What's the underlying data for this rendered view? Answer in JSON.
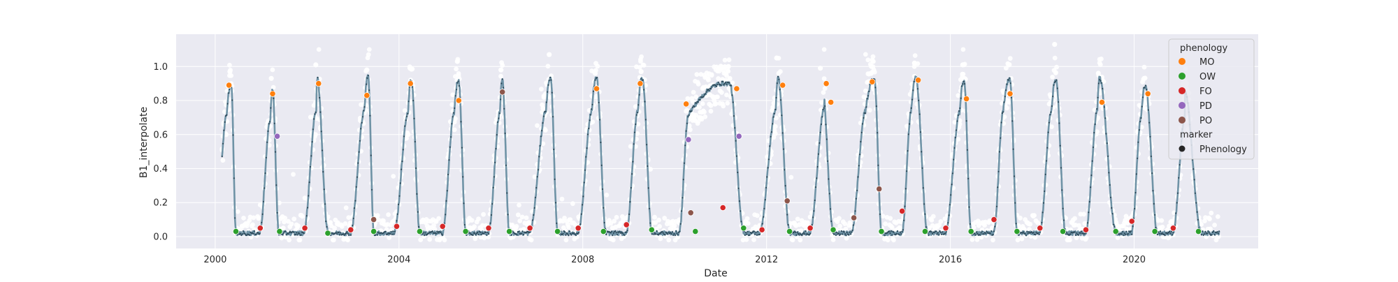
{
  "chart_data": {
    "type": "line",
    "title": "",
    "xlabel": "Date",
    "ylabel": "B1_interpolate",
    "xlim": [
      1999.15,
      2022.7
    ],
    "ylim": [
      -0.07,
      1.19
    ],
    "x_ticks": [
      {
        "value": 2000,
        "label": "2000"
      },
      {
        "value": 2004,
        "label": "2004"
      },
      {
        "value": 2008,
        "label": "2008"
      },
      {
        "value": 2012,
        "label": "2012"
      },
      {
        "value": 2016,
        "label": "2016"
      },
      {
        "value": 2020,
        "label": "2020"
      }
    ],
    "y_ticks": [
      {
        "value": 0.0,
        "label": "0.0"
      },
      {
        "value": 0.2,
        "label": "0.2"
      },
      {
        "value": 0.4,
        "label": "0.4"
      },
      {
        "value": 0.6,
        "label": "0.6"
      },
      {
        "value": 0.8,
        "label": "0.8"
      },
      {
        "value": 1.0,
        "label": "1.0"
      }
    ],
    "grid": true,
    "background": "#eaeaf2",
    "line_color": "#6f93a6",
    "raw_point_color": "#ffffff",
    "series_range": [
      2000.15,
      2021.85
    ],
    "seasons": [
      {
        "mo": 2000.35,
        "ow": 2000.45,
        "fo": 2000.97,
        "po": 2001.2,
        "peak": 0.89,
        "raw_peak": 0.97
      },
      {
        "mo": 2001.25,
        "ow": 2001.38,
        "fo": 2001.93,
        "po": 2002.2,
        "peak": 0.86,
        "raw_peak": 0.93
      },
      {
        "mo": 2002.22,
        "ow": 2002.45,
        "fo": 2002.95,
        "po": 2003.25,
        "peak": 0.93,
        "raw_peak": 1.01
      },
      {
        "mo": 2003.33,
        "ow": 2003.45,
        "fo": 2003.9,
        "po": 2004.2,
        "peak": 0.94,
        "raw_peak": 0.98
      },
      {
        "mo": 2004.27,
        "ow": 2004.45,
        "fo": 2004.95,
        "po": 2005.2,
        "peak": 0.92,
        "raw_peak": 0.99
      },
      {
        "mo": 2005.3,
        "ow": 2005.45,
        "fo": 2005.95,
        "po": 2006.2,
        "peak": 0.91,
        "raw_peak": 1.03
      },
      {
        "mo": 2006.25,
        "ow": 2006.4,
        "fo": 2006.85,
        "po": 2007.2,
        "peak": 0.92,
        "raw_peak": 0.98
      },
      {
        "mo": 2007.3,
        "ow": 2007.45,
        "fo": 2007.9,
        "po": 2008.2,
        "peak": 0.93,
        "raw_peak": 1.07
      },
      {
        "mo": 2008.3,
        "ow": 2008.5,
        "fo": 2008.95,
        "po": 2009.2,
        "peak": 0.93,
        "raw_peak": 0.96
      },
      {
        "mo": 2009.3,
        "ow": 2009.5,
        "fo": 2010.1,
        "po": 2010.3,
        "peak": 0.93,
        "raw_peak": 0.97
      },
      {
        "mo": 2011.2,
        "ow": 2011.5,
        "fo": 2011.85,
        "po": 2012.2,
        "peak": 0.9,
        "raw_peak": 1.0
      },
      {
        "mo": 2012.25,
        "ow": 2012.5,
        "fo": 2012.95,
        "po": 2013.25,
        "peak": 0.93,
        "raw_peak": 1.05
      },
      {
        "mo": 2013.2,
        "ow": 2013.45,
        "fo": 2013.85,
        "po": 2014.15,
        "peak": 0.93,
        "raw_peak": 0.99
      },
      {
        "mo": 2014.35,
        "ow": 2014.5,
        "fo": 2014.95,
        "po": 2015.15,
        "peak": 0.92,
        "raw_peak": 1.03
      },
      {
        "mo": 2015.25,
        "ow": 2015.5,
        "fo": 2015.9,
        "po": 2016.2,
        "peak": 0.93,
        "raw_peak": 1.02
      },
      {
        "mo": 2016.3,
        "ow": 2016.45,
        "fo": 2016.95,
        "po": 2017.15,
        "peak": 0.91,
        "raw_peak": 1.01
      },
      {
        "mo": 2017.3,
        "ow": 2017.45,
        "fo": 2017.95,
        "po": 2018.2,
        "peak": 0.92,
        "raw_peak": 1.01
      },
      {
        "mo": 2018.3,
        "ow": 2018.5,
        "fo": 2018.95,
        "po": 2019.2,
        "peak": 0.92,
        "raw_peak": 1.13
      },
      {
        "mo": 2019.25,
        "ow": 2019.6,
        "fo": 2019.95,
        "po": 2020.15,
        "peak": 0.93,
        "raw_peak": 0.96
      },
      {
        "mo": 2020.25,
        "ow": 2020.5,
        "fo": 2020.85,
        "po": 2021.1,
        "peak": 0.88,
        "raw_peak": 0.93
      },
      {
        "mo": 2021.1,
        "ow": 2021.45,
        "fo": 2021.85,
        "po": 2021.85,
        "peak": 0.86,
        "raw_peak": 0.9
      }
    ],
    "phenology_points": [
      {
        "x": 2000.3,
        "y": 0.89,
        "type": "MO"
      },
      {
        "x": 2000.45,
        "y": 0.03,
        "type": "OW"
      },
      {
        "x": 2000.98,
        "y": 0.05,
        "type": "FO"
      },
      {
        "x": 2001.25,
        "y": 0.84,
        "type": "MO"
      },
      {
        "x": 2001.35,
        "y": 0.59,
        "type": "PD"
      },
      {
        "x": 2001.4,
        "y": 0.03,
        "type": "OW"
      },
      {
        "x": 2001.95,
        "y": 0.05,
        "type": "FO"
      },
      {
        "x": 2002.25,
        "y": 0.9,
        "type": "MO"
      },
      {
        "x": 2002.45,
        "y": 0.02,
        "type": "OW"
      },
      {
        "x": 2002.95,
        "y": 0.04,
        "type": "FO"
      },
      {
        "x": 2003.3,
        "y": 0.83,
        "type": "MO"
      },
      {
        "x": 2003.45,
        "y": 0.1,
        "type": "PO"
      },
      {
        "x": 2003.45,
        "y": 0.03,
        "type": "OW"
      },
      {
        "x": 2003.95,
        "y": 0.06,
        "type": "FO"
      },
      {
        "x": 2004.25,
        "y": 0.9,
        "type": "MO"
      },
      {
        "x": 2004.45,
        "y": 0.03,
        "type": "OW"
      },
      {
        "x": 2004.95,
        "y": 0.06,
        "type": "FO"
      },
      {
        "x": 2005.3,
        "y": 0.8,
        "type": "MO"
      },
      {
        "x": 2005.45,
        "y": 0.03,
        "type": "OW"
      },
      {
        "x": 2005.95,
        "y": 0.05,
        "type": "FO"
      },
      {
        "x": 2006.25,
        "y": 0.85,
        "type": "PO"
      },
      {
        "x": 2006.4,
        "y": 0.03,
        "type": "OW"
      },
      {
        "x": 2006.85,
        "y": 0.05,
        "type": "FO"
      },
      {
        "x": 2007.45,
        "y": 0.03,
        "type": "OW"
      },
      {
        "x": 2007.9,
        "y": 0.05,
        "type": "FO"
      },
      {
        "x": 2008.3,
        "y": 0.87,
        "type": "MO"
      },
      {
        "x": 2008.45,
        "y": 0.03,
        "type": "OW"
      },
      {
        "x": 2008.95,
        "y": 0.07,
        "type": "FO"
      },
      {
        "x": 2009.25,
        "y": 0.9,
        "type": "MO"
      },
      {
        "x": 2009.5,
        "y": 0.04,
        "type": "OW"
      },
      {
        "x": 2010.25,
        "y": 0.78,
        "type": "MO"
      },
      {
        "x": 2010.3,
        "y": 0.57,
        "type": "PD"
      },
      {
        "x": 2010.35,
        "y": 0.14,
        "type": "PO"
      },
      {
        "x": 2010.45,
        "y": 0.03,
        "type": "OW"
      },
      {
        "x": 2011.05,
        "y": 0.17,
        "type": "FO"
      },
      {
        "x": 2011.35,
        "y": 0.87,
        "type": "MO"
      },
      {
        "x": 2011.4,
        "y": 0.59,
        "type": "PD"
      },
      {
        "x": 2011.5,
        "y": 0.05,
        "type": "OW"
      },
      {
        "x": 2011.9,
        "y": 0.04,
        "type": "FO"
      },
      {
        "x": 2012.35,
        "y": 0.89,
        "type": "MO"
      },
      {
        "x": 2012.45,
        "y": 0.21,
        "type": "PO"
      },
      {
        "x": 2012.5,
        "y": 0.03,
        "type": "OW"
      },
      {
        "x": 2012.95,
        "y": 0.05,
        "type": "FO"
      },
      {
        "x": 2013.3,
        "y": 0.9,
        "type": "MO"
      },
      {
        "x": 2013.4,
        "y": 0.79,
        "type": "MO"
      },
      {
        "x": 2013.45,
        "y": 0.04,
        "type": "OW"
      },
      {
        "x": 2013.9,
        "y": 0.11,
        "type": "PO"
      },
      {
        "x": 2014.3,
        "y": 0.91,
        "type": "MO"
      },
      {
        "x": 2014.45,
        "y": 0.28,
        "type": "PO"
      },
      {
        "x": 2014.5,
        "y": 0.03,
        "type": "OW"
      },
      {
        "x": 2014.95,
        "y": 0.15,
        "type": "FO"
      },
      {
        "x": 2015.3,
        "y": 0.92,
        "type": "MO"
      },
      {
        "x": 2015.45,
        "y": 0.03,
        "type": "OW"
      },
      {
        "x": 2015.9,
        "y": 0.05,
        "type": "FO"
      },
      {
        "x": 2016.35,
        "y": 0.81,
        "type": "MO"
      },
      {
        "x": 2016.45,
        "y": 0.03,
        "type": "OW"
      },
      {
        "x": 2016.95,
        "y": 0.1,
        "type": "FO"
      },
      {
        "x": 2017.3,
        "y": 0.84,
        "type": "MO"
      },
      {
        "x": 2017.45,
        "y": 0.03,
        "type": "OW"
      },
      {
        "x": 2017.95,
        "y": 0.05,
        "type": "FO"
      },
      {
        "x": 2018.45,
        "y": 0.03,
        "type": "OW"
      },
      {
        "x": 2018.95,
        "y": 0.04,
        "type": "FO"
      },
      {
        "x": 2019.3,
        "y": 0.79,
        "type": "MO"
      },
      {
        "x": 2019.6,
        "y": 0.03,
        "type": "OW"
      },
      {
        "x": 2019.95,
        "y": 0.09,
        "type": "FO"
      },
      {
        "x": 2020.3,
        "y": 0.84,
        "type": "MO"
      },
      {
        "x": 2020.45,
        "y": 0.03,
        "type": "OW"
      },
      {
        "x": 2020.85,
        "y": 0.05,
        "type": "FO"
      },
      {
        "x": 2021.4,
        "y": 0.03,
        "type": "OW"
      }
    ],
    "legend": {
      "placement": "top-right",
      "hue_title": "phenology",
      "entries": [
        {
          "label": "MO",
          "color": "#ff7f0e"
        },
        {
          "label": "OW",
          "color": "#2ca02c"
        },
        {
          "label": "FO",
          "color": "#d62728"
        },
        {
          "label": "PD",
          "color": "#9467bd"
        },
        {
          "label": "PO",
          "color": "#8c564b"
        }
      ],
      "style_title": "marker",
      "style_entries": [
        {
          "label": "Phenology",
          "color": "#262626"
        }
      ]
    }
  }
}
